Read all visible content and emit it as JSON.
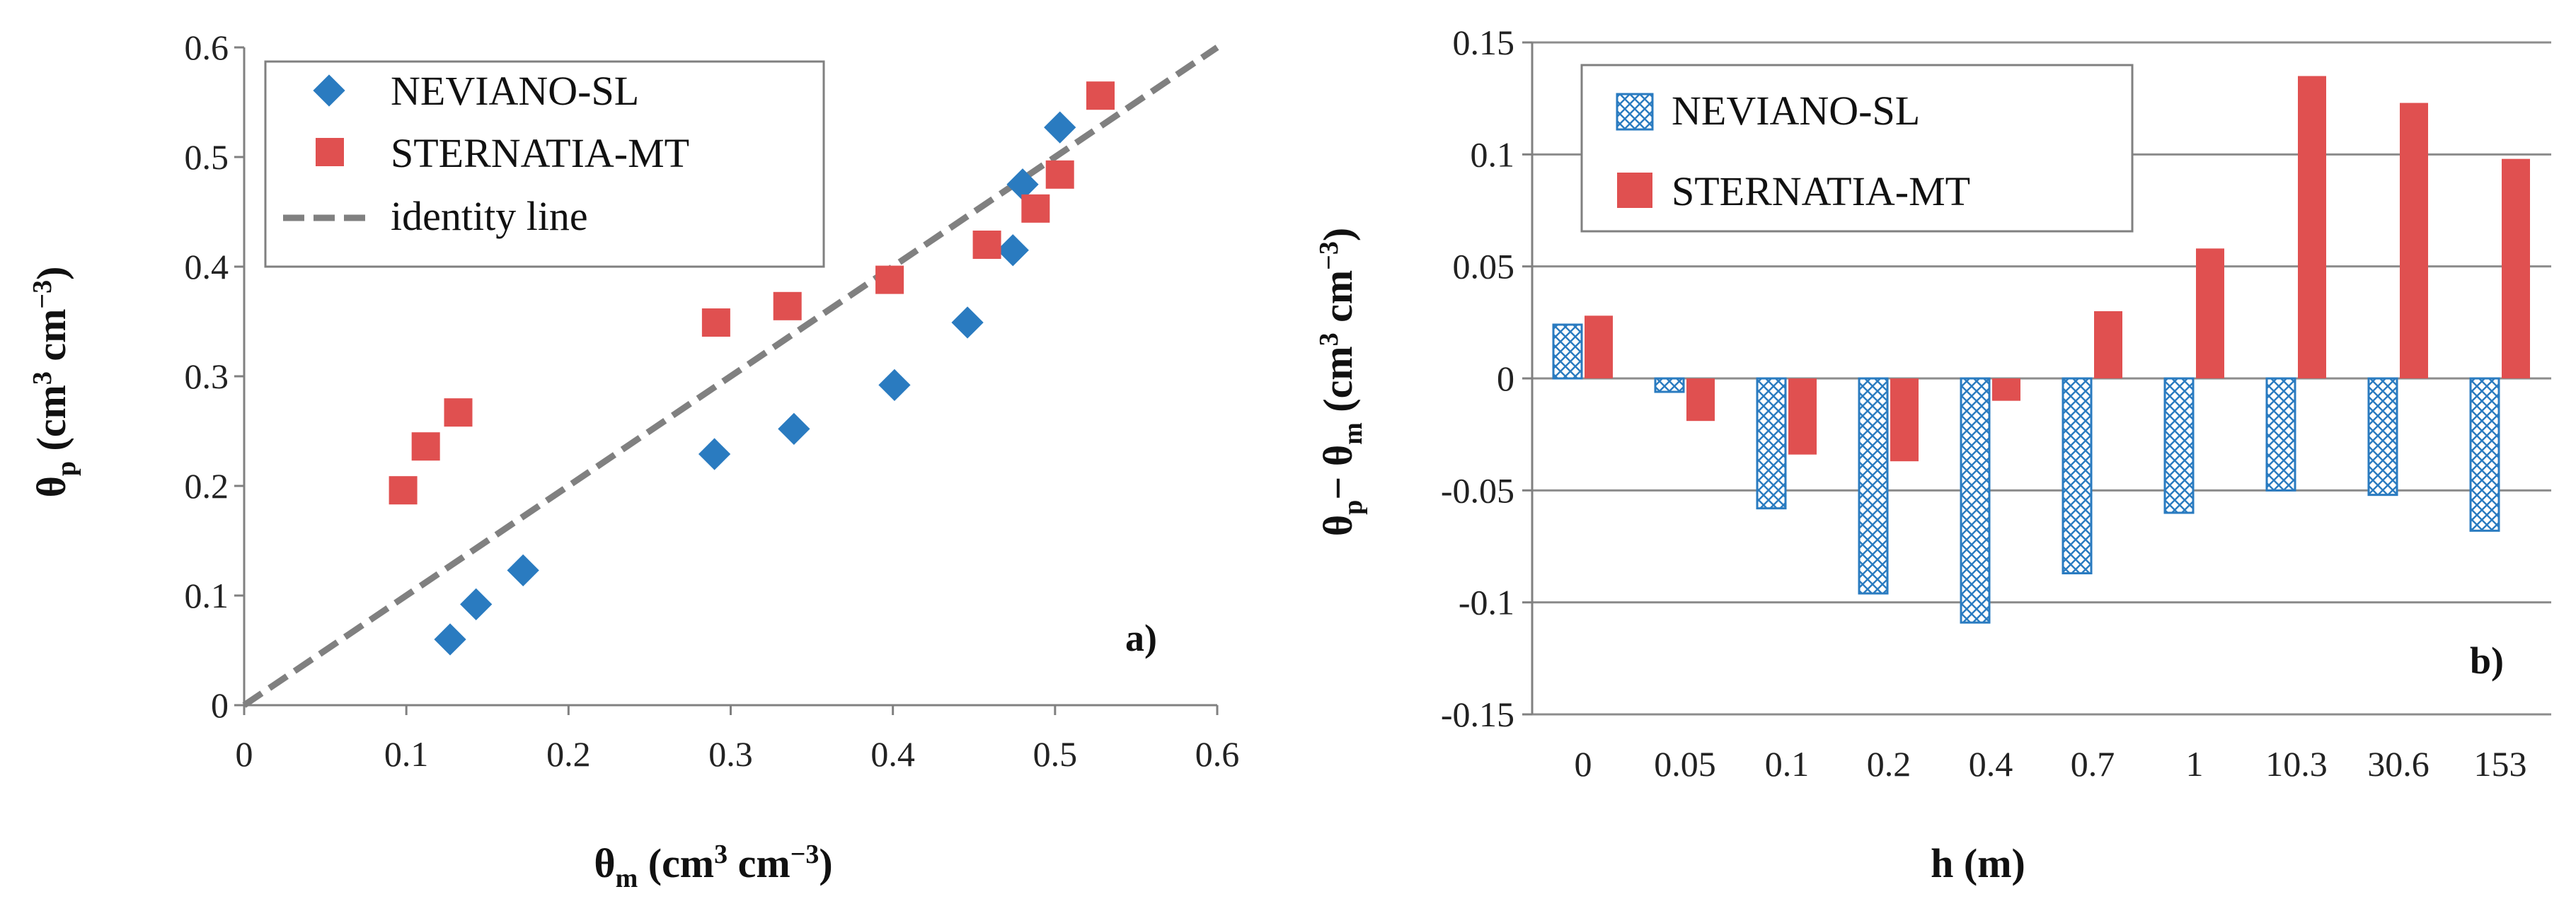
{
  "chart_data": [
    {
      "type": "scatter",
      "panel_label": "a)",
      "xlabel": {
        "main": "θ",
        "sub": "m",
        "unit": " (cm",
        "sup1": "3",
        "mid": " cm",
        "sup2": "−3",
        "end": ")"
      },
      "ylabel": {
        "main": "θ",
        "sub": "p",
        "unit": " (cm",
        "sup1": "3",
        "mid": " cm",
        "sup2": "−3",
        "end": ")"
      },
      "xlim": [
        0,
        0.6
      ],
      "ylim": [
        0,
        0.6
      ],
      "xticks": [
        "0",
        "0.1",
        "0.2",
        "0.3",
        "0.4",
        "0.5",
        "0.6"
      ],
      "yticks": [
        "0",
        "0.1",
        "0.2",
        "0.3",
        "0.4",
        "0.5",
        "0.6"
      ],
      "series": [
        {
          "name": "NEVIANO-SL",
          "marker": "diamond",
          "color": "#2A7BC0",
          "points": [
            [
              0.127,
              0.06
            ],
            [
              0.143,
              0.092
            ],
            [
              0.172,
              0.123
            ],
            [
              0.29,
              0.229
            ],
            [
              0.339,
              0.252
            ],
            [
              0.401,
              0.292
            ],
            [
              0.446,
              0.349
            ],
            [
              0.474,
              0.415
            ],
            [
              0.48,
              0.475
            ],
            [
              0.503,
              0.527
            ]
          ]
        },
        {
          "name": "STERNATIA-MT",
          "marker": "square",
          "color": "#E05050",
          "points": [
            [
              0.098,
              0.196
            ],
            [
              0.112,
              0.236
            ],
            [
              0.132,
              0.267
            ],
            [
              0.291,
              0.349
            ],
            [
              0.335,
              0.364
            ],
            [
              0.398,
              0.388
            ],
            [
              0.458,
              0.42
            ],
            [
              0.488,
              0.453
            ],
            [
              0.503,
              0.484
            ],
            [
              0.528,
              0.556
            ]
          ]
        },
        {
          "name": "identity line",
          "type": "line",
          "style": "dashed",
          "color": "#808080",
          "points": [
            [
              0,
              0
            ],
            [
              0.6,
              0.6
            ]
          ]
        }
      ]
    },
    {
      "type": "bar",
      "panel_label": "b)",
      "xlabel": {
        "text": "h (m)"
      },
      "ylabel": {
        "p1": "θ",
        "s1": "p",
        "mid": "− θ",
        "s2": "m",
        "unit": " (cm",
        "sup1": "3",
        "cm": " cm",
        "sup2": "−3",
        "end": ")"
      },
      "ylim": [
        -0.15,
        0.15
      ],
      "yticks": [
        "0.15",
        "0.1",
        "0.05",
        "0",
        "-0.05",
        "-0.1",
        "-0.15"
      ],
      "categories": [
        "0",
        "0.05",
        "0.1",
        "0.2",
        "0.4",
        "0.7",
        "1",
        "10.3",
        "30.6",
        "153"
      ],
      "series": [
        {
          "name": "NEVIANO-SL",
          "pattern": "crosshatch",
          "color": "#2A7BC0",
          "values": [
            0.024,
            -0.006,
            -0.058,
            -0.096,
            -0.109,
            -0.087,
            -0.06,
            -0.05,
            -0.052,
            -0.068
          ]
        },
        {
          "name": "STERNATIA-MT",
          "color": "#E05050",
          "values": [
            0.028,
            -0.019,
            -0.034,
            -0.037,
            -0.01,
            0.03,
            0.058,
            0.135,
            0.123,
            0.098
          ]
        }
      ]
    }
  ]
}
